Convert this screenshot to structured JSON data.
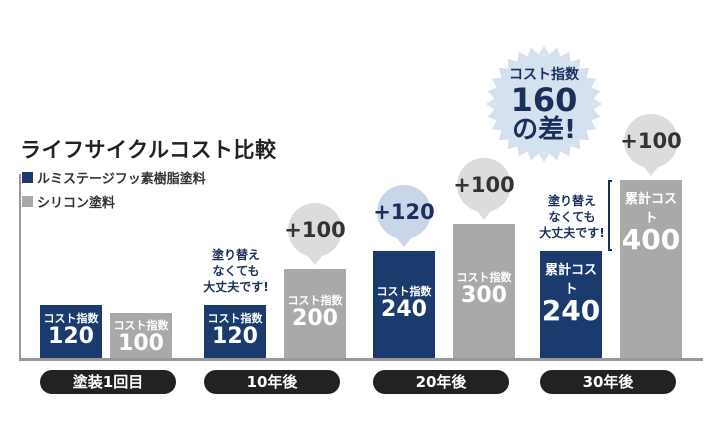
{
  "chart_title": "ライフサイクルコスト比較",
  "colors": {
    "navy": "#1b3a6e",
    "gray": "#a9a9a9",
    "bubble_blue": "#c9d6ea",
    "bubble_gray": "#dcdcdc",
    "badge": "#d6e1f0"
  },
  "chart_data": {
    "type": "bar",
    "categories": [
      "塗装1回目",
      "10年後",
      "20年後",
      "30年後"
    ],
    "series": [
      {
        "name": "ルミステージフッ素樹脂塗料",
        "color": "#1b3a6e",
        "values": [
          120,
          120,
          240,
          240
        ]
      },
      {
        "name": "シリコン塗料",
        "color": "#a9a9a9",
        "values": [
          100,
          200,
          300,
          400
        ]
      }
    ],
    "bar_captions": [
      [
        "コスト指数",
        "コスト指数"
      ],
      [
        "コスト指数",
        "コスト指数"
      ],
      [
        "コスト指数",
        "コスト指数"
      ],
      [
        "累計コスト",
        "累計コスト"
      ]
    ],
    "increments": [
      {
        "category": "10年後",
        "series": "シリコン塗料",
        "label": "+100"
      },
      {
        "category": "20年後",
        "series": "ルミステージフッ素樹脂塗料",
        "label": "+120"
      },
      {
        "category": "20年後",
        "series": "シリコン塗料",
        "label": "+100"
      },
      {
        "category": "30年後",
        "series": "シリコン塗料",
        "label": "+100"
      }
    ],
    "notes": [
      {
        "category": "10年後",
        "lines": [
          "塗り替え",
          "なくても",
          "大丈夫です!"
        ]
      },
      {
        "category": "30年後",
        "lines": [
          "塗り替え",
          "なくても",
          "大丈夫です!"
        ]
      }
    ],
    "callout": {
      "caption": "コスト指数",
      "value": "160",
      "suffix": "の差!"
    },
    "ylim": [
      0,
      440
    ],
    "grid": false,
    "legend_position": "top-left"
  }
}
